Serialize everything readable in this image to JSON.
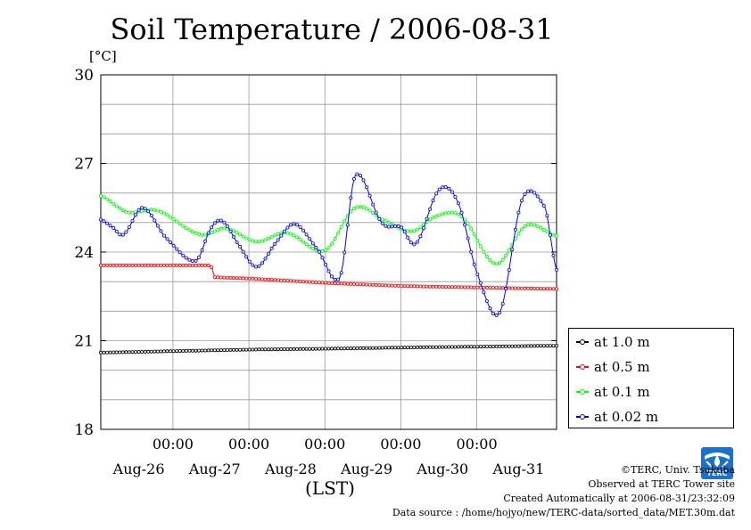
{
  "title": "Soil Temperature / 2006-08-31",
  "y_unit": "[°C]",
  "x_axis_label": "(LST)",
  "credits": [
    "©TERC, Univ. Tsukuba",
    "Observed at TERC Tower site",
    "Created Automatically at 2006-08-31/23:32:09",
    "Data source : /home/hojyo/new/TERC-data/sorted_data/MET.30m.dat"
  ],
  "logo_text": "TERC",
  "chart_data": {
    "type": "line",
    "title": "Soil Temperature / 2006-08-31",
    "xlabel": "(LST)",
    "ylabel": "[°C]",
    "ylim": [
      18,
      30
    ],
    "yticks": [
      18,
      21,
      24,
      27,
      30
    ],
    "xlim_days": [
      0,
      6
    ],
    "x_ticks_time": [
      "00:00",
      "00:00",
      "00:00",
      "00:00",
      "00:00"
    ],
    "x_ticks_date": [
      "Aug-26",
      "Aug-27",
      "Aug-28",
      "Aug-29",
      "Aug-30",
      "Aug-31"
    ],
    "grid": true,
    "legend_position": "right",
    "series": [
      {
        "name": "at 1.0 m",
        "color": "#000000",
        "x_days": [
          0,
          1,
          2,
          3,
          4,
          5,
          6
        ],
        "values": [
          20.6,
          20.65,
          20.7,
          20.73,
          20.77,
          20.8,
          20.83
        ]
      },
      {
        "name": "at 0.5 m",
        "color": "#ff0000",
        "x_days": [
          0,
          1.0,
          1.45,
          1.5,
          2.0,
          3.0,
          4.0,
          5.0,
          6.0
        ],
        "values": [
          23.55,
          23.55,
          23.55,
          23.15,
          23.1,
          22.95,
          22.85,
          22.8,
          22.75
        ]
      },
      {
        "name": "at 0.1 m",
        "color": "#00ff00",
        "x_days": [
          0,
          0.35,
          0.75,
          1.3,
          1.65,
          2.05,
          2.45,
          2.95,
          3.35,
          3.75,
          4.1,
          4.4,
          4.75,
          5.2,
          5.6,
          6.0
        ],
        "values": [
          25.9,
          25.35,
          25.4,
          24.6,
          24.8,
          24.35,
          24.65,
          24.05,
          25.5,
          25.05,
          24.7,
          25.2,
          25.2,
          23.6,
          24.9,
          24.55
        ]
      },
      {
        "name": "at 0.02 m",
        "color": "#0000ff",
        "x_days": [
          0,
          0.15,
          0.3,
          0.55,
          0.85,
          1.25,
          1.45,
          1.6,
          1.8,
          2.05,
          2.3,
          2.55,
          2.85,
          3.15,
          3.35,
          3.7,
          3.95,
          4.15,
          4.45,
          4.7,
          4.95,
          5.25,
          5.55,
          5.85,
          6.0
        ],
        "values": [
          25.1,
          24.85,
          24.6,
          25.5,
          24.5,
          23.7,
          24.8,
          25.05,
          24.3,
          23.5,
          24.3,
          24.95,
          24.1,
          23.15,
          26.6,
          25.0,
          24.85,
          24.3,
          26.1,
          25.7,
          23.3,
          21.95,
          25.8,
          25.5,
          23.4
        ]
      }
    ]
  }
}
